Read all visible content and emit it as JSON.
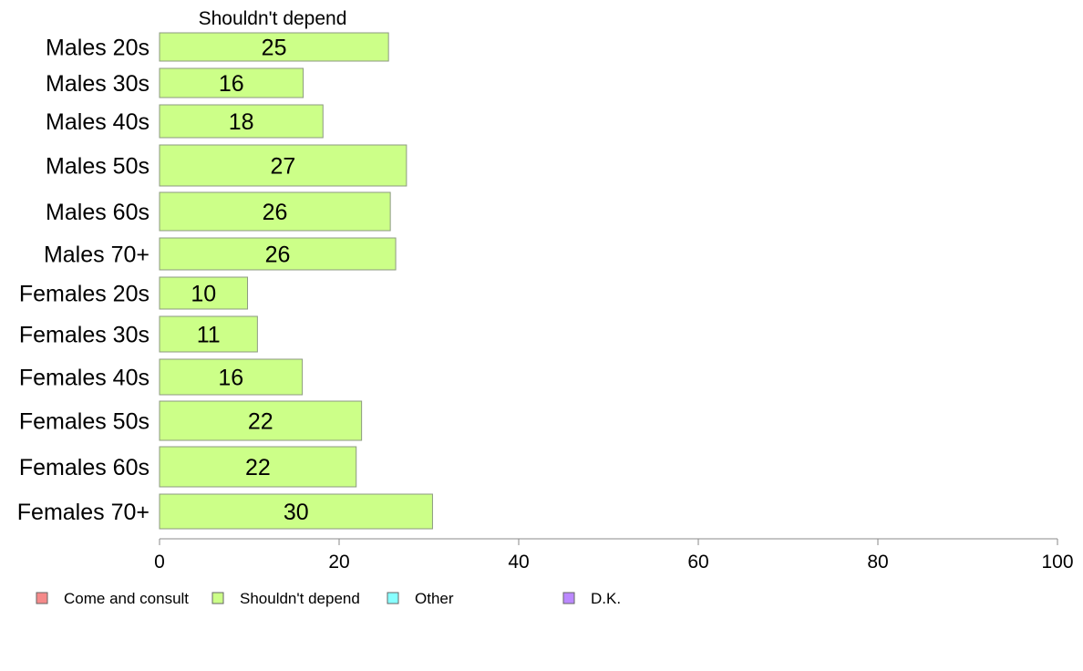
{
  "chart_data": {
    "type": "bar",
    "orientation": "horizontal",
    "title": "",
    "panel_title": "Shouldn't depend",
    "xlabel": "",
    "ylabel": "",
    "xlim": [
      0,
      100
    ],
    "x_ticks": [
      0,
      20,
      40,
      60,
      80,
      100
    ],
    "grid": false,
    "legend_position": "bottom",
    "categories": [
      "Males 20s",
      "Males 30s",
      "Males 40s",
      "Males 50s",
      "Males 60s",
      "Males 70+",
      "Females 20s",
      "Females 30s",
      "Females 40s",
      "Females 50s",
      "Females 60s",
      "Females 70+"
    ],
    "series": [
      {
        "name": "Shouldn't depend",
        "color": "#ccff88",
        "values": [
          25.5,
          16,
          18.2,
          27.5,
          25.7,
          26.3,
          9.8,
          10.9,
          15.9,
          22.5,
          21.9,
          30.4
        ],
        "labels": [
          "25",
          "16",
          "18",
          "27",
          "26",
          "26",
          "10",
          "11",
          "16",
          "22",
          "22",
          "30"
        ]
      }
    ],
    "legend": [
      {
        "label": "Come and consult",
        "color": "#f58a8a"
      },
      {
        "label": "Shouldn't depend",
        "color": "#ccff88"
      },
      {
        "label": "Other",
        "color": "#88ffff"
      },
      {
        "label": "D.K.",
        "color": "#bb88ff"
      }
    ]
  }
}
